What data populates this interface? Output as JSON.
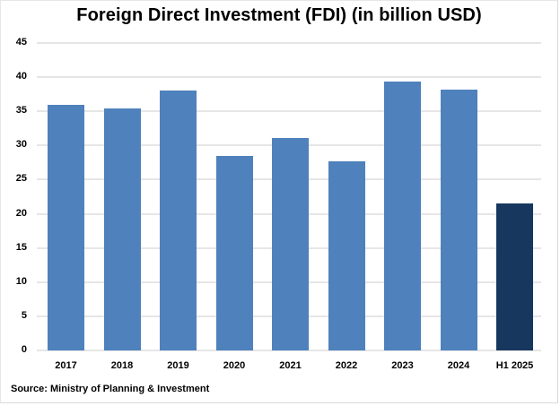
{
  "chart_data": {
    "type": "bar",
    "title": "Foreign Direct Investment (FDI) (in billion USD)",
    "xlabel": "",
    "ylabel": "",
    "categories": [
      "2017",
      "2018",
      "2019",
      "2020",
      "2021",
      "2022",
      "2023",
      "2024",
      "H1 2025"
    ],
    "values": [
      35.9,
      35.4,
      38.0,
      28.5,
      31.1,
      27.7,
      39.4,
      38.2,
      21.5
    ],
    "bar_colors": [
      "#4f81bd",
      "#4f81bd",
      "#4f81bd",
      "#4f81bd",
      "#4f81bd",
      "#4f81bd",
      "#4f81bd",
      "#4f81bd",
      "#17375e"
    ],
    "ylim": [
      0,
      45
    ],
    "yticks": [
      "0",
      "5",
      "10",
      "15",
      "20",
      "25",
      "30",
      "35",
      "40",
      "45"
    ],
    "grid": true,
    "legend": null,
    "source": "Source: Ministry of Planning & Investment"
  },
  "colors": {
    "bar": "#4f81bd",
    "highlight_bar": "#17375e",
    "grid": "#e6e6e6"
  }
}
